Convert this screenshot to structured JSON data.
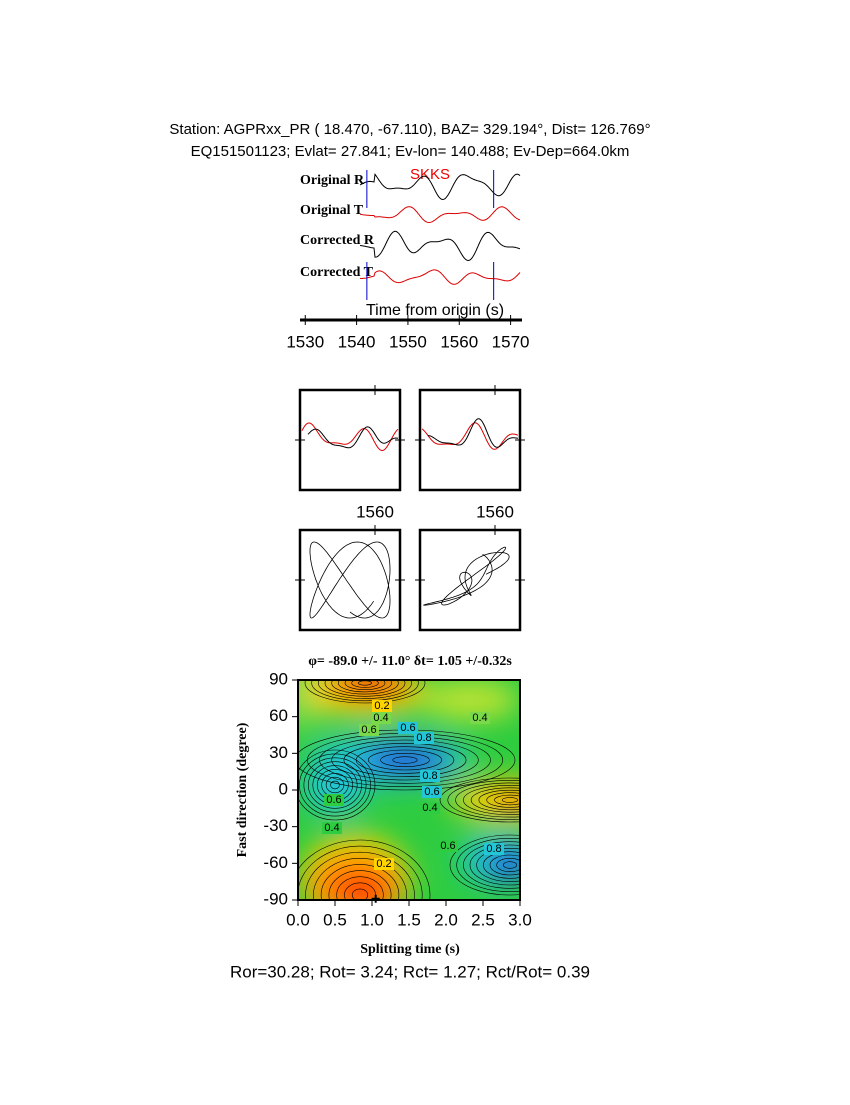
{
  "header": {
    "line1": "Station: AGPRxx_PR (  18.470,  -67.110), BAZ=  329.194°, Dist=  126.769°",
    "line2": "EQ151501123; Evlat=  27.841; Ev-lon= 140.488; Ev-Dep=664.0km"
  },
  "seismogram": {
    "phase": "SKKS",
    "traces": [
      "Original R",
      "Original T",
      "Corrected R",
      "Corrected T"
    ],
    "xlabel": "Time from origin (s)",
    "xlim": [
      1528,
      1573
    ],
    "xticks": [
      1530,
      1540,
      1550,
      1560,
      1570
    ],
    "window": [
      1542,
      1566.7
    ]
  },
  "particle_motion": {
    "tick_labels": [
      1560,
      1560
    ]
  },
  "contour": {
    "title": "φ= -89.0 +/- 11.0° δt= 1.05 +/-0.32s",
    "xlabel": "Splitting time (s)",
    "ylabel": "Fast direction (degree)",
    "xlim": [
      0,
      3
    ],
    "ylim": [
      -90,
      90
    ],
    "xticks": [
      {
        "value": 0,
        "label": "0.0"
      },
      {
        "value": 0.5,
        "label": "0.5"
      },
      {
        "value": 1,
        "label": "1.0"
      },
      {
        "value": 1.5,
        "label": "1.5"
      },
      {
        "value": 2,
        "label": "2.0"
      },
      {
        "value": 2.5,
        "label": "2.5"
      },
      {
        "value": 3,
        "label": "3.0"
      }
    ],
    "yticks": [
      -90,
      -60,
      -30,
      0,
      30,
      60,
      90
    ],
    "contour_labels": [
      "0.2",
      "0.4",
      "0.6",
      "0.6",
      "0.8",
      "0.4",
      "0.8",
      "0.6",
      "0.6",
      "0.4",
      "0.4",
      "0.6",
      "0.8",
      "0.2"
    ],
    "best": [
      1.05,
      -89.0
    ]
  },
  "footer": "Ror=30.28; Rot= 3.24; Rct= 1.27; Rct/Rot= 0.39"
}
